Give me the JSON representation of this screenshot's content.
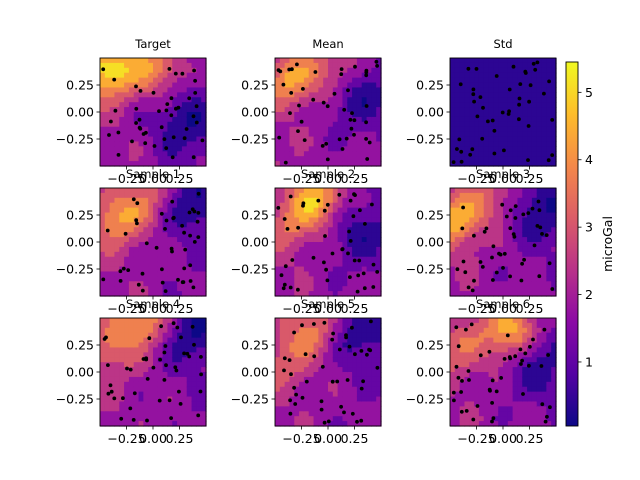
{
  "chart_data": {
    "type": "heatmap",
    "units": "microGal",
    "colormap": "plasma",
    "colormap_stops": [
      "#0d0887",
      "#5402a3",
      "#8b0aa5",
      "#b93289",
      "#db5c68",
      "#f48849",
      "#febd2a",
      "#f0f921"
    ],
    "point_color": "#000000",
    "axes": {
      "xlim": [
        -0.5,
        0.5
      ],
      "ylim": [
        -0.5,
        0.5
      ],
      "xticks": [
        -0.25,
        0.0,
        0.25
      ],
      "yticks": [
        0.25,
        0.0,
        -0.25
      ],
      "xtick_labels": [
        "−0.25",
        "0.00",
        "0.25"
      ],
      "ytick_labels": [
        "0.25",
        "0.00",
        "−0.25"
      ]
    },
    "colorbar": {
      "label": "microGal",
      "range": [
        0.05,
        5.45
      ],
      "ticks": [
        1,
        2,
        3,
        4,
        5
      ],
      "tick_labels": [
        "1",
        "2",
        "3",
        "4",
        "5"
      ]
    },
    "panels": [
      {
        "title": "Target",
        "kind": "field",
        "hot": [
          -0.42,
          0.38,
          5.2
        ],
        "hot2": [
          0.02,
          0.42,
          4.6
        ],
        "cold": [
          0.3,
          -0.12,
          0.3
        ]
      },
      {
        "title": "Mean",
        "kind": "field",
        "hot": [
          -0.35,
          0.3,
          4.1
        ],
        "hot2": [
          0.05,
          0.42,
          3.6
        ],
        "cold": [
          0.3,
          0.15,
          0.5
        ]
      },
      {
        "title": "Std",
        "kind": "uniform",
        "value": 0.2
      },
      {
        "title": "Sample 1",
        "kind": "field",
        "hot": [
          -0.35,
          0.2,
          4.0
        ],
        "hot2": [
          -0.05,
          0.42,
          3.7
        ],
        "cold": [
          0.38,
          0.35,
          0.2
        ]
      },
      {
        "title": "Sample 2",
        "kind": "field",
        "hot": [
          -0.1,
          0.4,
          4.6
        ],
        "hot2": [
          -0.35,
          0.15,
          3.5
        ],
        "cold": [
          0.3,
          0.1,
          0.5
        ]
      },
      {
        "title": "Sample 3",
        "kind": "field",
        "hot": [
          -0.45,
          0.2,
          4.3
        ],
        "hot2": [
          -0.1,
          0.42,
          3.6
        ],
        "cold": [
          0.35,
          0.3,
          0.2
        ]
      },
      {
        "title": "Sample 4",
        "kind": "field",
        "hot": [
          -0.1,
          0.48,
          4.5
        ],
        "hot2": [
          -0.4,
          0.2,
          3.6
        ],
        "cold": [
          0.35,
          0.35,
          0.3
        ]
      },
      {
        "title": "Sample 5",
        "kind": "field",
        "hot": [
          -0.15,
          0.38,
          3.7
        ],
        "hot2": [
          -0.4,
          0.1,
          3.2
        ],
        "cold": [
          0.3,
          0.35,
          0.4
        ]
      },
      {
        "title": "Sample 6",
        "kind": "field",
        "hot": [
          0.05,
          0.38,
          4.7
        ],
        "hot2": [
          -0.42,
          0.2,
          3.5
        ],
        "cold": [
          0.32,
          0.05,
          0.5
        ]
      }
    ]
  }
}
